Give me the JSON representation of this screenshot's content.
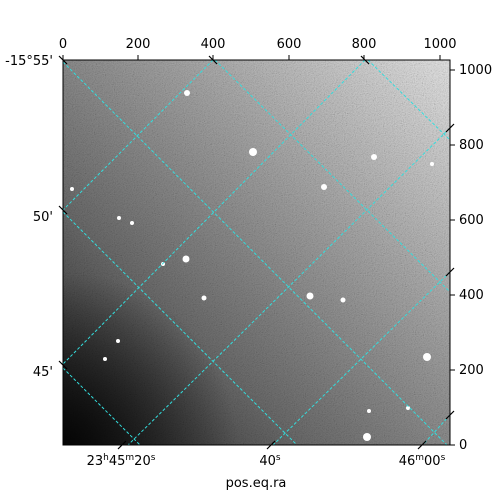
{
  "image": {
    "description_kind": "grayscale astronomical sky image with cyan RA/Dec coordinate grid overlay",
    "grid_color": "#33dddd",
    "frame_color": "#000000"
  },
  "axes": {
    "pixel_x_ticks": [
      "0",
      "200",
      "400",
      "600",
      "800",
      "1000"
    ],
    "pixel_y_ticks": [
      "0",
      "200",
      "400",
      "600",
      "800",
      "1000"
    ],
    "ra_labels": [
      {
        "h": "23",
        "hsup": "h",
        "m": "45",
        "msup": "m",
        "s": "20",
        "ssup": "s"
      },
      {
        "s": "40",
        "ssup": "s"
      },
      {
        "h": "",
        "m": "46",
        "msup": "m",
        "s": "00",
        "ssup": "s"
      }
    ],
    "dec_labels": [
      "-15°55'",
      "50'",
      "45'"
    ],
    "xlabel": "pos.eq.ra"
  }
}
